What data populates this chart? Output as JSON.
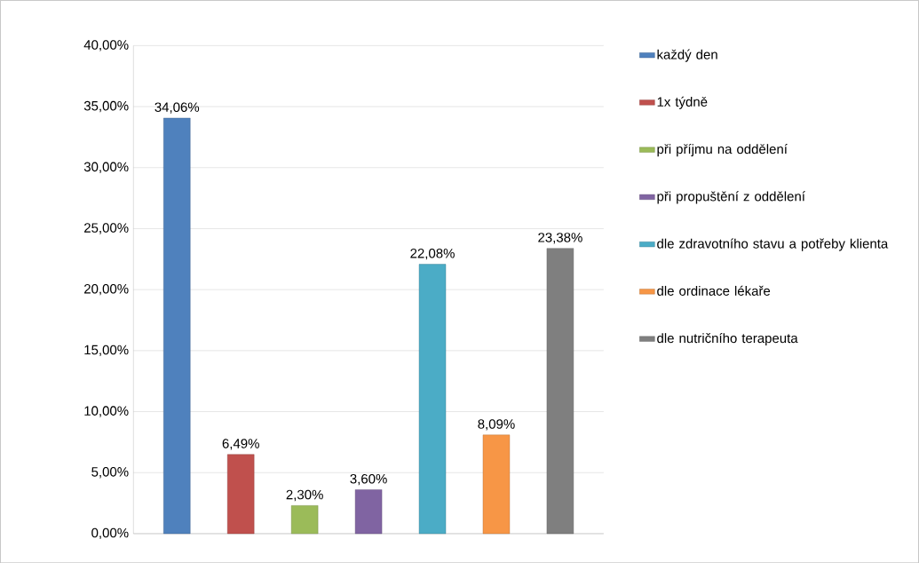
{
  "chart_data": {
    "type": "bar",
    "categories": [
      null
    ],
    "series": [
      {
        "name": "každý den",
        "color": "#4f81bd",
        "values": [
          34.06
        ],
        "value_labels": [
          "34,06%"
        ]
      },
      {
        "name": "1x týdně",
        "color": "#c0504d",
        "values": [
          6.49
        ],
        "value_labels": [
          "6,49%"
        ]
      },
      {
        "name": "při příjmu na oddělení",
        "color": "#9bbb59",
        "values": [
          2.3
        ],
        "value_labels": [
          "2,30%"
        ]
      },
      {
        "name": "při propuštění z oddělení",
        "color": "#8064a2",
        "values": [
          3.6
        ],
        "value_labels": [
          "3,60%"
        ]
      },
      {
        "name": "dle zdravotního stavu a potřeby klienta",
        "color": "#4bacc6",
        "values": [
          22.08
        ],
        "value_labels": [
          "22,08%"
        ]
      },
      {
        "name": "dle ordinace lékaře",
        "color": "#f79646",
        "values": [
          8.09
        ],
        "value_labels": [
          "8,09%"
        ]
      },
      {
        "name": "dle nutričního terapeuta",
        "color": "#7f7f7f",
        "values": [
          23.38
        ],
        "value_labels": [
          "23,38%"
        ]
      }
    ],
    "ylim": [
      0,
      40
    ],
    "yticks": [
      {
        "value": 0,
        "label": "0,00%"
      },
      {
        "value": 5,
        "label": "5,00%"
      },
      {
        "value": 10,
        "label": "10,00%"
      },
      {
        "value": 15,
        "label": "15,00%"
      },
      {
        "value": 20,
        "label": "20,00%"
      },
      {
        "value": 25,
        "label": "25,00%"
      },
      {
        "value": 30,
        "label": "30,00%"
      },
      {
        "value": 35,
        "label": "35,00%"
      },
      {
        "value": 40,
        "label": "40,00%"
      }
    ],
    "grid": "y",
    "legend": "right"
  }
}
